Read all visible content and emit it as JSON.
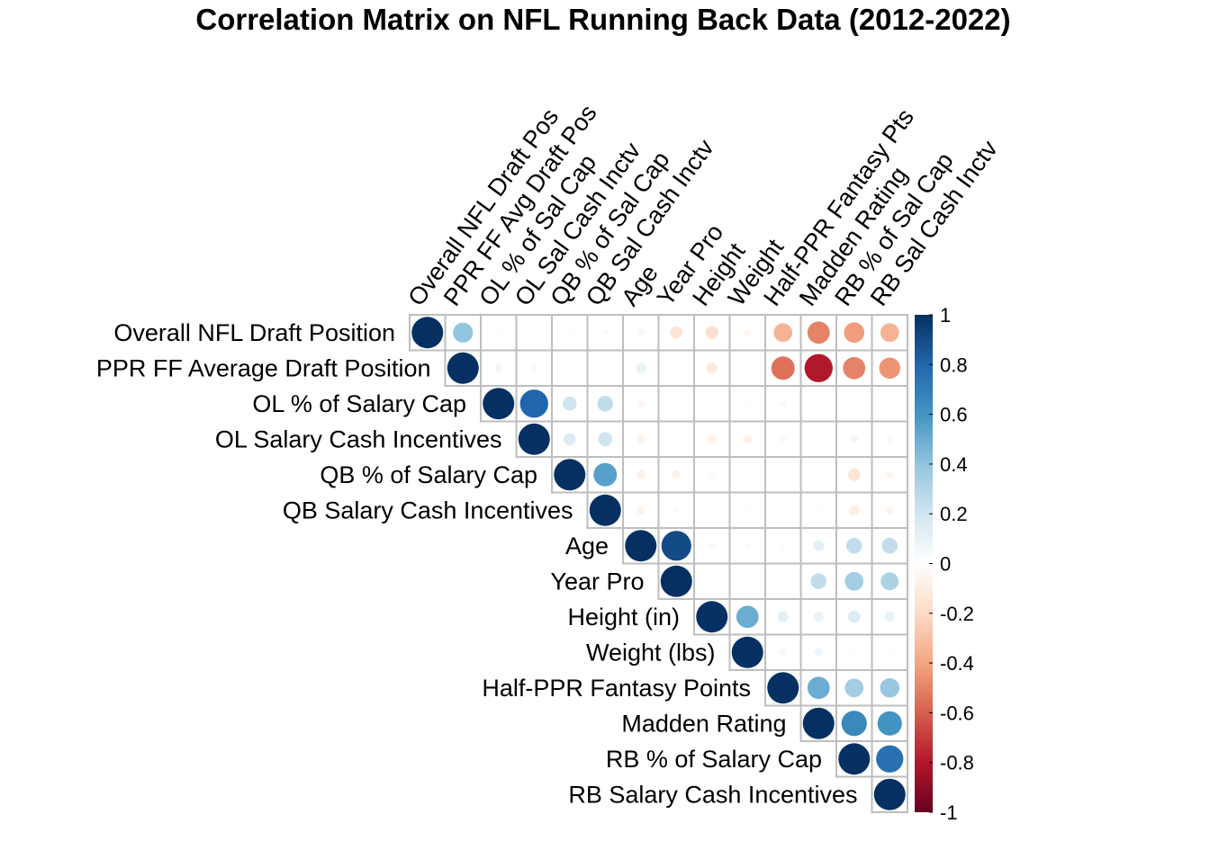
{
  "chart_data": {
    "type": "heatmap",
    "subtype": "corrplot-upper-circle",
    "title": "Correlation Matrix on NFL Running Back Data (2012-2022)",
    "row_labels": [
      "Overall NFL Draft Position",
      "PPR FF Average Draft Position",
      "OL % of Salary Cap",
      "OL Salary Cash Incentives",
      "QB % of Salary Cap",
      "QB Salary Cash Incentives",
      "Age",
      "Year Pro",
      "Height (in)",
      "Weight (lbs)",
      "Half-PPR Fantasy Points",
      "Madden Rating",
      "RB % of Salary Cap",
      "RB Salary Cash Incentives"
    ],
    "col_labels": [
      "Overall NFL Draft Pos",
      "PPR FF Avg Draft Pos",
      "OL % of Sal Cap",
      "OL Sal Cash Inctv",
      "QB % of Sal Cap",
      "QB Sal Cash Inctv",
      "Age",
      "Year Pro",
      "Height",
      "Weight",
      "Half-PPR Fantasy Pts",
      "Madden Rating",
      "RB % of Sal Cap",
      "RB Sal Cash Inctv"
    ],
    "upper_values": [
      [
        1,
        0.4,
        0.02,
        0.0,
        0.02,
        -0.03,
        0.05,
        -0.15,
        -0.17,
        -0.05,
        -0.35,
        -0.5,
        -0.42,
        -0.35
      ],
      [
        1,
        0.06,
        0.05,
        0.0,
        -0.02,
        0.1,
        -0.01,
        -0.12,
        -0.02,
        -0.55,
        -0.8,
        -0.5,
        -0.45
      ],
      [
        1,
        0.8,
        0.2,
        0.25,
        -0.05,
        0.0,
        -0.01,
        -0.02,
        0.04,
        0.0,
        0.0,
        -0.01
      ],
      [
        1,
        0.15,
        0.2,
        -0.08,
        -0.01,
        -0.08,
        -0.08,
        0.04,
        -0.01,
        -0.06,
        -0.05
      ],
      [
        1,
        0.55,
        -0.08,
        -0.08,
        0.03,
        0.0,
        0.0,
        -0.01,
        -0.15,
        -0.06
      ],
      [
        1,
        -0.07,
        -0.04,
        0.0,
        -0.02,
        -0.01,
        -0.02,
        -0.1,
        -0.06
      ],
      [
        1,
        0.9,
        0.04,
        0.03,
        -0.03,
        0.12,
        0.25,
        0.25
      ],
      [
        1,
        0.02,
        0.01,
        0.01,
        0.25,
        0.35,
        0.32
      ],
      [
        1,
        0.5,
        0.12,
        0.1,
        0.15,
        0.1
      ],
      [
        1,
        0.05,
        0.07,
        0.02,
        0.02
      ],
      [
        1,
        0.5,
        0.35,
        0.38
      ],
      [
        1,
        0.65,
        0.6
      ],
      [
        1,
        0.75
      ],
      [
        1
      ]
    ],
    "colorbar": {
      "range": [
        -1,
        1
      ],
      "tick_labels": [
        "1",
        "0.8",
        "0.6",
        "0.4",
        "0.2",
        "0",
        "-0.2",
        "-0.4",
        "-0.6",
        "-0.8",
        "-1"
      ],
      "colors": [
        "#67001F",
        "#B2182B",
        "#D6604D",
        "#F4A582",
        "#FDDBC7",
        "#FFFFFF",
        "#D1E5F0",
        "#92C5DE",
        "#4393C3",
        "#2166AC",
        "#053061"
      ]
    },
    "grid": true
  }
}
